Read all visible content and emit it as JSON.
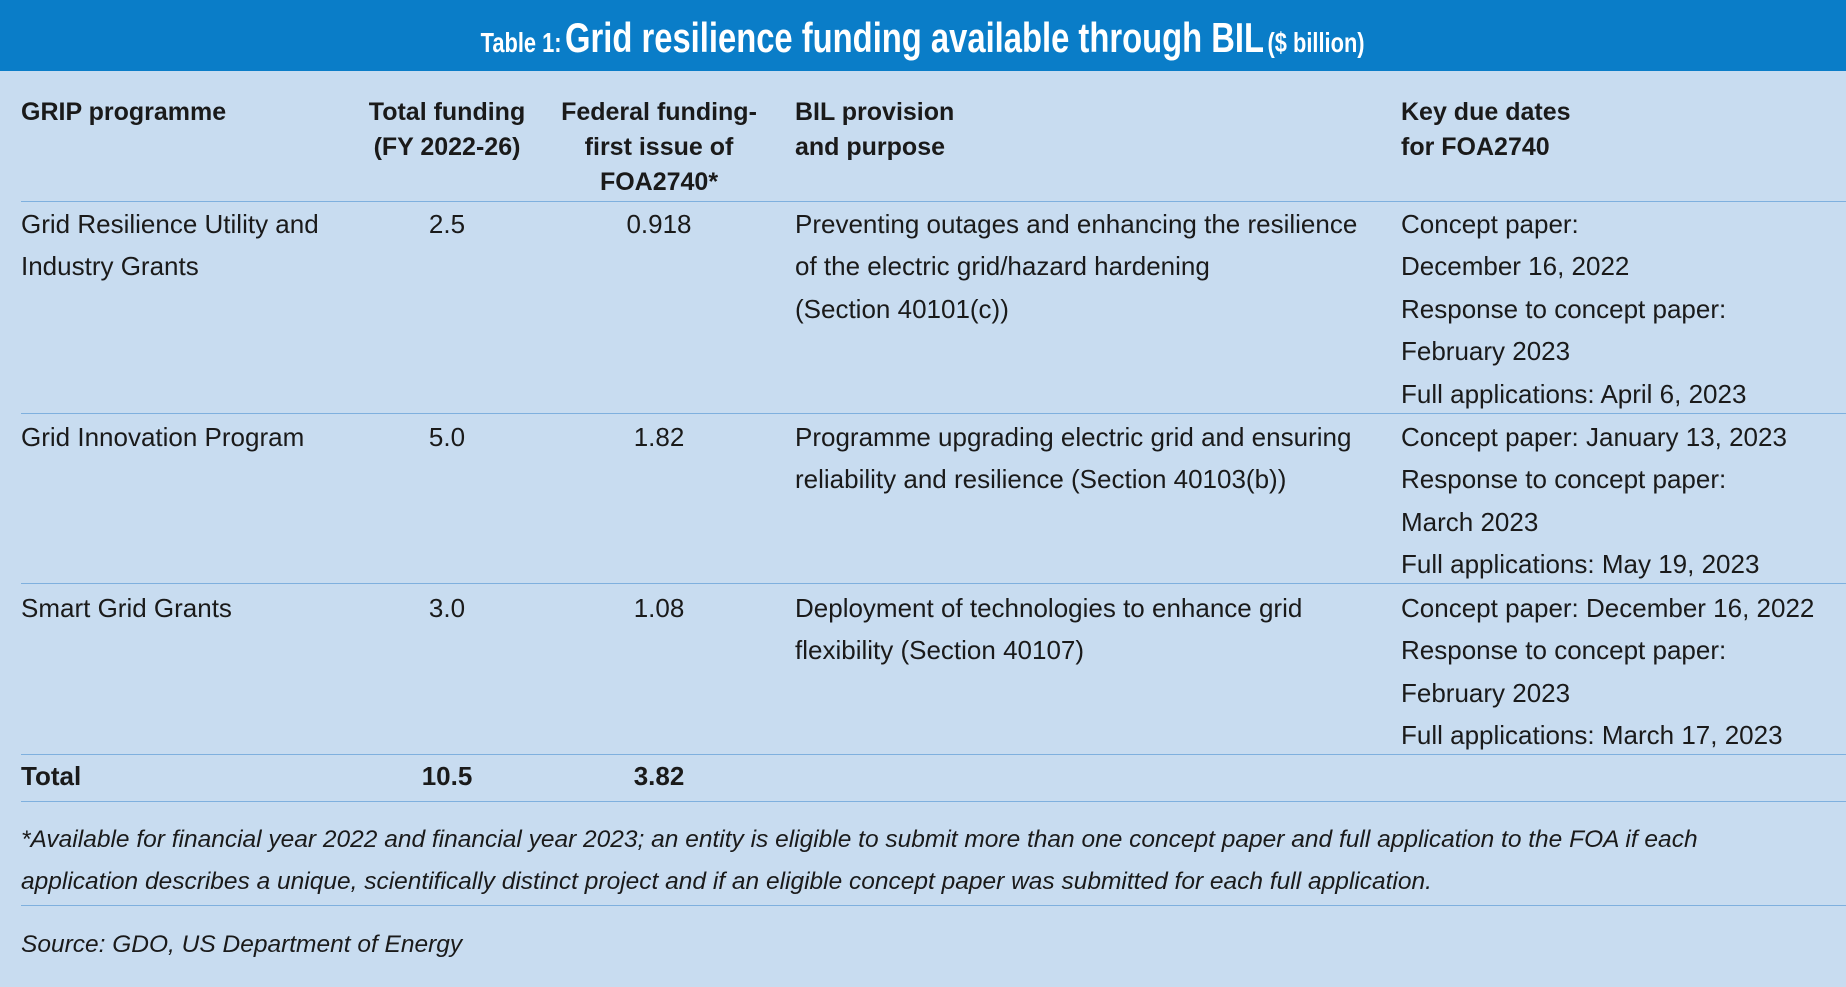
{
  "title": {
    "label": "Table 1:",
    "main": "Grid resilience funding available through BIL",
    "unit": "($ billion)"
  },
  "table": {
    "header": [
      [
        "GRIP programme"
      ],
      [
        "Total funding",
        "(FY 2022-26)"
      ],
      [
        "Federal funding-",
        "first issue of",
        "FOA2740*"
      ],
      [
        "BIL provision",
        "and purpose"
      ],
      [
        "Key due dates",
        "for FOA2740"
      ]
    ],
    "rows": [
      [
        [
          "Grid Resilience Utility and",
          "Industry Grants"
        ],
        [
          "2.5"
        ],
        [
          "0.918"
        ],
        [
          "Preventing outages and enhancing the resilience",
          "of the electric grid/hazard hardening",
          "(Section 40101(c))"
        ],
        [
          "Concept paper:",
          "December 16, 2022",
          "Response to concept paper:",
          "February 2023",
          "Full applications: April 6, 2023"
        ]
      ],
      [
        [
          "Grid Innovation Program"
        ],
        [
          "5.0"
        ],
        [
          "1.82"
        ],
        [
          "Programme upgrading electric grid and ensuring",
          "reliability and resilience (Section 40103(b))"
        ],
        [
          "Concept paper: January 13, 2023",
          "Response to concept paper:",
          "March 2023",
          "Full applications: May 19, 2023"
        ]
      ],
      [
        [
          "Smart Grid Grants"
        ],
        [
          "3.0"
        ],
        [
          "1.08"
        ],
        [
          "Deployment of technologies to enhance grid",
          "flexibility (Section 40107)"
        ],
        [
          "Concept paper: December 16, 2022",
          "Response to concept paper:",
          "February 2023",
          "Full applications: March 17, 2023"
        ]
      ]
    ],
    "total_row": [
      [
        "Total"
      ],
      [
        "10.5"
      ],
      [
        "3.82"
      ]
    ]
  },
  "footnote": [
    "*Available for financial year 2022 and financial year 2023; an entity is eligible to submit more than one concept paper and full application to the FOA if each",
    "application describes a unique, scientifically distinct project and if an eligible concept paper was submitted for each full application."
  ],
  "source": "Source: GDO, US Department of Energy"
}
